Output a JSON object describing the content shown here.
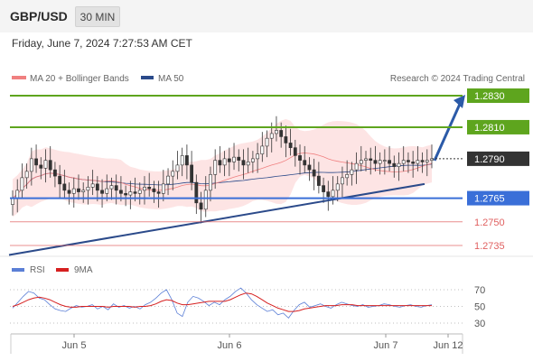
{
  "header": {
    "pair": "GBP/USD",
    "timeframe": "30 MIN",
    "datetime": "Friday, June 7, 2024 7:27:53 AM CET"
  },
  "legend": {
    "ma20": "MA 20 + Bollinger Bands",
    "ma50": "MA 50",
    "credit": "Research © 2024 Trading Central"
  },
  "rsi_legend": {
    "rsi": "RSI",
    "ma9": "9MA"
  },
  "colors": {
    "ma20": "#f08080",
    "ma50": "#2b4a8a",
    "band": "#fde4e4",
    "support": "#3a6fd8",
    "resistance": "#5ea51e",
    "pivot_red": "#e06060",
    "trend": "#2b4a8a",
    "arrow": "#2b5aa8",
    "rsi": "#5b7fd6",
    "ma9": "#d62020",
    "last": "#333333",
    "candle": "#333333"
  },
  "chart_data": [
    {
      "type": "candlestick",
      "title": "GBP/USD",
      "ylim": [
        1.2725,
        1.2845
      ],
      "x_labels": [
        "Jun 5",
        "Jun 6",
        "Jun 7",
        "Jun 12"
      ],
      "candles_close_approx": [
        1.2765,
        1.277,
        1.2778,
        1.2782,
        1.279,
        1.2786,
        1.2784,
        1.2789,
        1.2783,
        1.2779,
        1.2774,
        1.277,
        1.2768,
        1.2771,
        1.2769,
        1.277,
        1.2772,
        1.2774,
        1.277,
        1.2768,
        1.2771,
        1.2773,
        1.277,
        1.2768,
        1.2767,
        1.2769,
        1.2768,
        1.277,
        1.2772,
        1.2771,
        1.2769,
        1.2768,
        1.2774,
        1.2779,
        1.2782,
        1.2786,
        1.2792,
        1.2786,
        1.2775,
        1.2762,
        1.2758,
        1.277,
        1.278,
        1.2789,
        1.2786,
        1.279,
        1.2788,
        1.2791,
        1.2789,
        1.2786,
        1.2788,
        1.279,
        1.2793,
        1.2798,
        1.2803,
        1.2806,
        1.2808,
        1.2804,
        1.28,
        1.2797,
        1.2792,
        1.2789,
        1.2786,
        1.2783,
        1.2779,
        1.2773,
        1.2769,
        1.2766,
        1.277,
        1.2774,
        1.2778,
        1.278,
        1.2783,
        1.2787,
        1.2789,
        1.279,
        1.2789,
        1.2787,
        1.2789,
        1.2789,
        1.2787,
        1.2785,
        1.2787,
        1.2789,
        1.2788,
        1.2787,
        1.2789,
        1.2788,
        1.2789,
        1.279
      ],
      "levels": [
        {
          "label": "1.2830",
          "value": 1.283,
          "role": "resistance"
        },
        {
          "label": "1.2810",
          "value": 1.281,
          "role": "resistance"
        },
        {
          "label": "1.2790",
          "value": 1.279,
          "role": "last"
        },
        {
          "label": "1.2765",
          "value": 1.2765,
          "role": "support"
        },
        {
          "label": "1.2750",
          "value": 1.275,
          "role": "pivot"
        },
        {
          "label": "1.2735",
          "value": 1.2735,
          "role": "pivot"
        }
      ],
      "series": [
        {
          "name": "MA 20 + Bollinger Bands"
        },
        {
          "name": "MA 50"
        }
      ],
      "trendline": {
        "from": [
          "Jun 4 (start)",
          1.2729
        ],
        "to": [
          "Jun 7",
          1.2774
        ]
      },
      "projection": {
        "from": 1.279,
        "to": 1.283
      }
    },
    {
      "type": "line",
      "title": "RSI",
      "y_ticks": [
        "70",
        "50",
        "30"
      ],
      "ylim": [
        20,
        80
      ],
      "series": [
        {
          "name": "RSI",
          "values": [
            48,
            55,
            62,
            68,
            66,
            60,
            58,
            52,
            47,
            45,
            44,
            48,
            51,
            49,
            50,
            52,
            47,
            50,
            46,
            53,
            49,
            51,
            48,
            50,
            47,
            52,
            55,
            60,
            66,
            70,
            58,
            42,
            38,
            55,
            62,
            60,
            56,
            51,
            55,
            52,
            58,
            62,
            68,
            72,
            66,
            58,
            52,
            48,
            44,
            46,
            40,
            42,
            36,
            45,
            52,
            55,
            49,
            51,
            53,
            50,
            48,
            52,
            55,
            53,
            51,
            50,
            52,
            49,
            50,
            51,
            53,
            52,
            50,
            49,
            51,
            52,
            50,
            49,
            51,
            52
          ]
        },
        {
          "name": "9MA",
          "values": [
            50,
            52,
            55,
            58,
            60,
            61,
            60,
            58,
            55,
            52,
            50,
            49,
            49,
            50,
            50,
            50,
            50,
            50,
            49,
            50,
            50,
            50,
            50,
            49,
            50,
            50,
            51,
            53,
            56,
            58,
            57,
            54,
            52,
            52,
            53,
            54,
            55,
            56,
            56,
            56,
            56,
            58,
            61,
            64,
            66,
            65,
            62,
            58,
            54,
            51,
            48,
            46,
            44,
            44,
            45,
            47,
            48,
            49,
            50,
            51,
            51,
            51,
            52,
            52,
            52,
            51,
            51,
            51,
            51,
            51,
            51,
            51,
            51,
            51,
            51,
            51,
            51,
            51,
            51,
            51
          ]
        }
      ]
    }
  ]
}
